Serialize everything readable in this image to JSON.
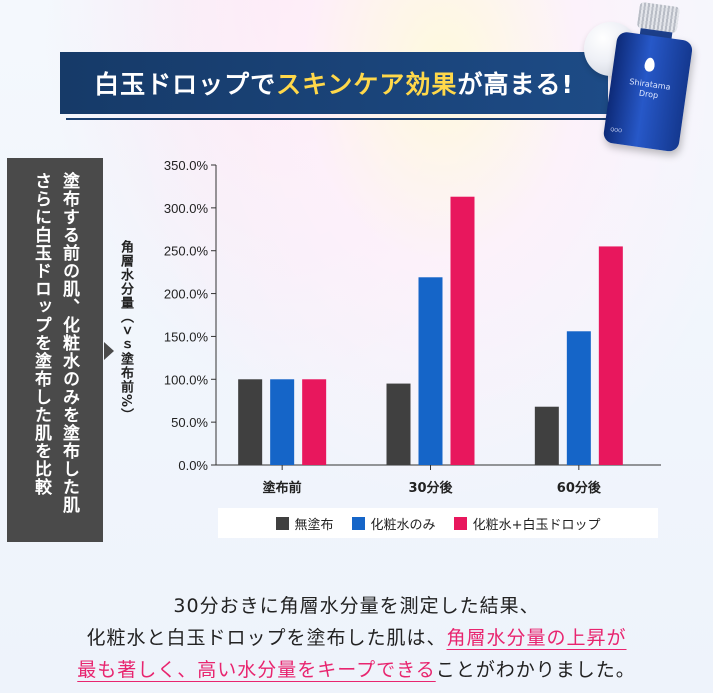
{
  "banner": {
    "part1": "白玉ドロップで",
    "part2": "スキンケア効果",
    "part3": "が高まる!"
  },
  "product": {
    "name_line1": "Shiratama",
    "name_line2": "Drop",
    "mini_text": "QOO"
  },
  "sidebox": {
    "line1": "塗布する前の肌、化粧水のみを塗布した肌",
    "line2": "さらに白玉ドロップを塗布した肌を比較"
  },
  "colors": {
    "series1": "#404040",
    "series2": "#1565c8",
    "series3": "#e8175d",
    "banner_bg": "#163a68",
    "highlight_yellow": "#ffd84a",
    "highlight_pink": "#e8256f"
  },
  "chart_data": {
    "type": "bar",
    "title": "",
    "ylabel": "角層水分量（ｖｓ塗布前%）",
    "xlabel": "",
    "categories": [
      "塗布前",
      "30分後",
      "60分後"
    ],
    "ylim": [
      0,
      350
    ],
    "yticks": [
      "0.0%",
      "50.0%",
      "100.0%",
      "150.0%",
      "200.0%",
      "250.0%",
      "300.0%",
      "350.0%"
    ],
    "ytick_values": [
      0,
      50,
      100,
      150,
      200,
      250,
      300,
      350
    ],
    "grid": false,
    "legend_position": "bottom",
    "series": [
      {
        "name": "無塗布",
        "values": [
          100,
          95,
          68
        ]
      },
      {
        "name": "化粧水のみ",
        "values": [
          100,
          219,
          156
        ]
      },
      {
        "name": "化粧水+白玉ドロップ",
        "values": [
          100,
          313,
          255
        ]
      }
    ]
  },
  "caption": {
    "line1": "30分おきに角層水分量を測定した結果、",
    "line2_plain": "化粧水と白玉ドロップを塗布した肌は、",
    "line2_pink": "角層水分量の上昇が",
    "line3_pink": "最も著しく、高い水分量をキープできる",
    "line3_plain": "ことがわかりました。"
  }
}
